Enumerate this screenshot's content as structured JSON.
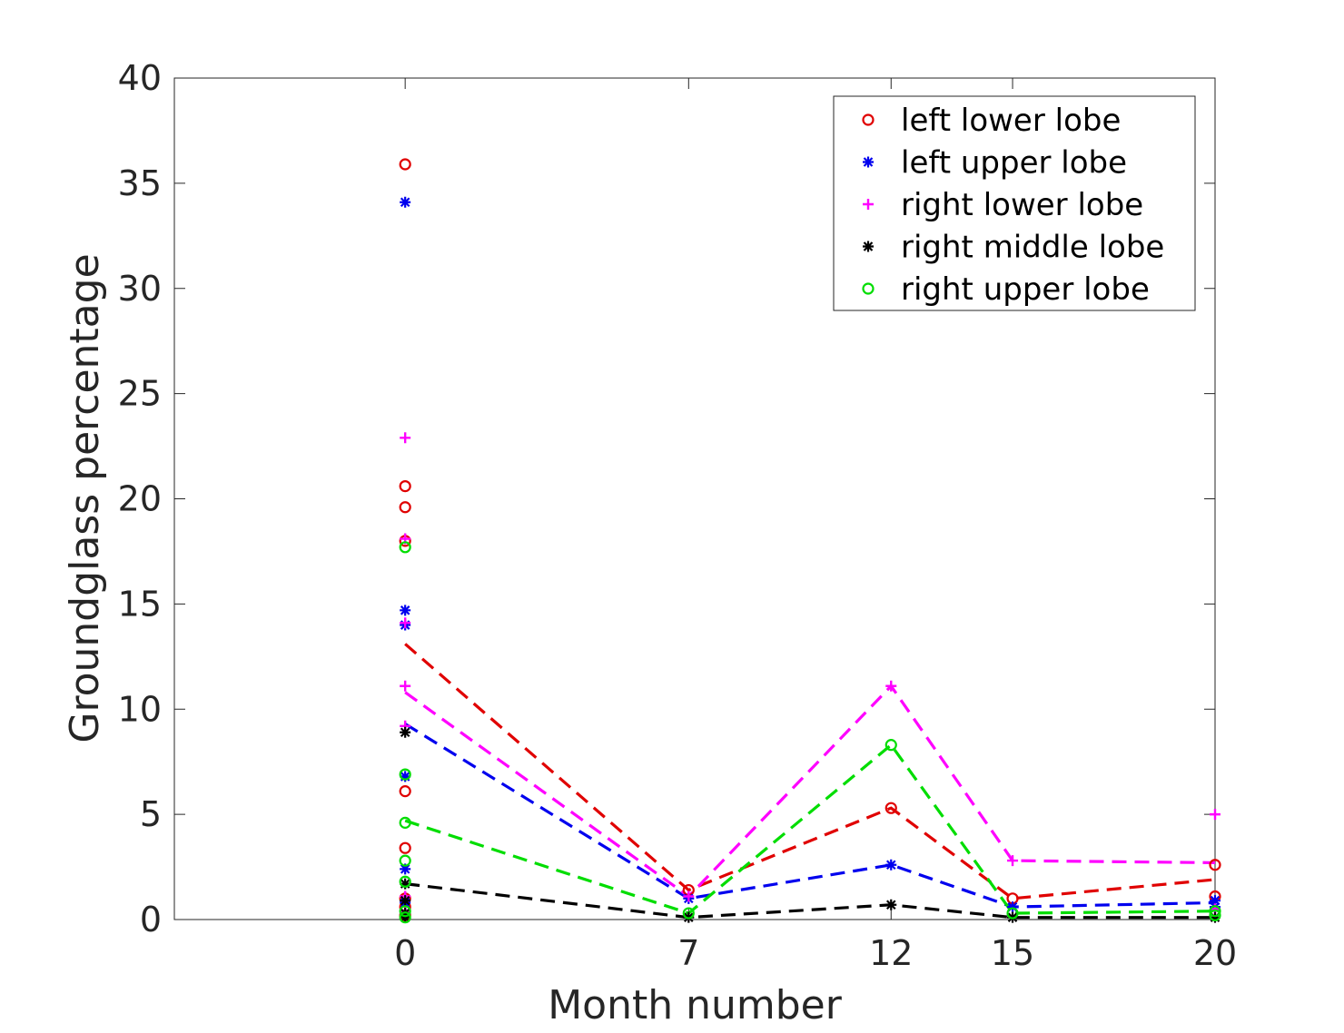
{
  "chart_data": {
    "type": "scatter",
    "title": "",
    "xlabel": "Month number",
    "ylabel": "Groundglass percentage",
    "xlim": [
      -5.7,
      20
    ],
    "ylim": [
      0,
      40
    ],
    "xticks": [
      0,
      7,
      12,
      15,
      20
    ],
    "yticks": [
      0,
      5,
      10,
      15,
      20,
      25,
      30,
      35,
      40
    ],
    "legend_position": "top-right",
    "series": [
      {
        "name": "left lower lobe",
        "color": "#e00000",
        "marker": "circle",
        "points": [
          [
            0,
            35.9
          ],
          [
            0,
            20.6
          ],
          [
            0,
            19.6
          ],
          [
            0,
            18.0
          ],
          [
            0,
            6.1
          ],
          [
            0,
            3.4
          ],
          [
            0,
            1.0
          ],
          [
            0,
            0.6
          ],
          [
            0,
            0.2
          ],
          [
            7,
            1.4
          ],
          [
            12,
            5.3
          ],
          [
            15,
            1.0
          ],
          [
            20,
            2.6
          ],
          [
            20,
            1.1
          ]
        ],
        "mean_line": [
          [
            0,
            13.1
          ],
          [
            7,
            1.4
          ],
          [
            12,
            5.3
          ],
          [
            15,
            1.0
          ],
          [
            20,
            1.9
          ]
        ]
      },
      {
        "name": "left upper lobe",
        "color": "#0000ee",
        "marker": "star",
        "points": [
          [
            0,
            34.1
          ],
          [
            0,
            14.7
          ],
          [
            0,
            14.0
          ],
          [
            0,
            6.8
          ],
          [
            0,
            2.4
          ],
          [
            0,
            0.8
          ],
          [
            0,
            0.3
          ],
          [
            7,
            1.0
          ],
          [
            12,
            2.6
          ],
          [
            15,
            0.6
          ],
          [
            20,
            0.9
          ],
          [
            20,
            0.6
          ]
        ],
        "mean_line": [
          [
            0,
            9.3
          ],
          [
            7,
            1.0
          ],
          [
            12,
            2.6
          ],
          [
            15,
            0.6
          ],
          [
            20,
            0.8
          ]
        ]
      },
      {
        "name": "right lower lobe",
        "color": "#ff00ff",
        "marker": "plus",
        "points": [
          [
            0,
            22.9
          ],
          [
            0,
            18.1
          ],
          [
            0,
            14.1
          ],
          [
            0,
            11.1
          ],
          [
            0,
            9.2
          ],
          [
            0,
            1.1
          ],
          [
            0,
            0.4
          ],
          [
            7,
            1.1
          ],
          [
            12,
            11.1
          ],
          [
            15,
            2.8
          ],
          [
            20,
            5.0
          ],
          [
            20,
            0.5
          ]
        ],
        "mean_line": [
          [
            0,
            10.8
          ],
          [
            7,
            1.1
          ],
          [
            12,
            11.1
          ],
          [
            15,
            2.8
          ],
          [
            20,
            2.7
          ]
        ]
      },
      {
        "name": "right middle lobe",
        "color": "#000000",
        "marker": "star",
        "points": [
          [
            0,
            8.9
          ],
          [
            0,
            1.7
          ],
          [
            0,
            0.9
          ],
          [
            0,
            0.3
          ],
          [
            0,
            0.1
          ],
          [
            7,
            0.1
          ],
          [
            12,
            0.7
          ],
          [
            15,
            0.1
          ],
          [
            20,
            0.1
          ]
        ],
        "mean_line": [
          [
            0,
            1.7
          ],
          [
            7,
            0.1
          ],
          [
            12,
            0.7
          ],
          [
            15,
            0.1
          ],
          [
            20,
            0.1
          ]
        ]
      },
      {
        "name": "right upper lobe",
        "color": "#00dd00",
        "marker": "circle",
        "points": [
          [
            0,
            17.7
          ],
          [
            0,
            6.9
          ],
          [
            0,
            4.6
          ],
          [
            0,
            2.8
          ],
          [
            0,
            1.8
          ],
          [
            0,
            0.4
          ],
          [
            0,
            0.1
          ],
          [
            7,
            0.3
          ],
          [
            12,
            8.3
          ],
          [
            15,
            0.3
          ],
          [
            20,
            0.4
          ],
          [
            20,
            0.2
          ]
        ],
        "mean_line": [
          [
            0,
            4.7
          ],
          [
            7,
            0.3
          ],
          [
            12,
            8.3
          ],
          [
            15,
            0.3
          ],
          [
            20,
            0.4
          ]
        ]
      }
    ]
  }
}
